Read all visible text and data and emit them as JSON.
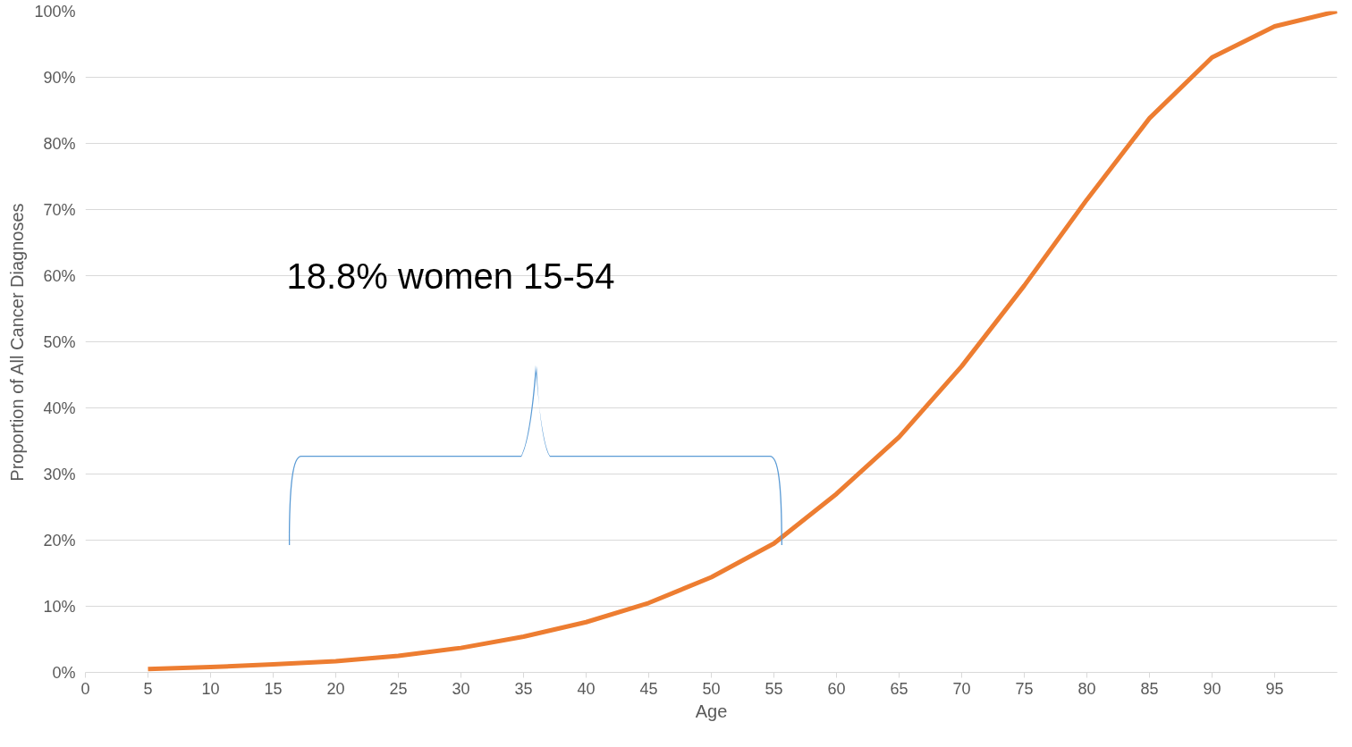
{
  "chart_data": {
    "type": "line",
    "xlabel": "Age",
    "ylabel": "Proportion of All Cancer Diagnoses",
    "x": [
      5,
      10,
      15,
      20,
      25,
      30,
      35,
      40,
      45,
      50,
      55,
      60,
      65,
      70,
      75,
      80,
      85,
      90,
      95,
      100
    ],
    "series": [
      {
        "color": "#ed7d31",
        "values": [
          0.5,
          0.8,
          1.2,
          1.7,
          2.5,
          3.7,
          5.4,
          7.6,
          10.5,
          14.4,
          19.5,
          27,
          35.6,
          46.3,
          58.5,
          71.5,
          83.8,
          93,
          97.7,
          100
        ]
      }
    ],
    "xlim": [
      0,
      100
    ],
    "xticks": [
      0,
      5,
      10,
      15,
      20,
      25,
      30,
      35,
      40,
      45,
      50,
      55,
      60,
      65,
      70,
      75,
      80,
      85,
      90,
      95
    ],
    "ylim": [
      0,
      100
    ],
    "yticks": [
      {
        "value": 0,
        "label": "0%"
      },
      {
        "value": 10,
        "label": "10%"
      },
      {
        "value": 20,
        "label": "20%"
      },
      {
        "value": 30,
        "label": "30%"
      },
      {
        "value": 40,
        "label": "40%"
      },
      {
        "value": 50,
        "label": "50%"
      },
      {
        "value": 60,
        "label": "60%"
      },
      {
        "value": 70,
        "label": "70%"
      },
      {
        "value": 80,
        "label": "80%"
      },
      {
        "value": 90,
        "label": "90%"
      },
      {
        "value": 100,
        "label": "100%"
      }
    ],
    "grid": "y",
    "marker": "none",
    "line_style": "solid",
    "annotations": [
      "18.8% women 15-54"
    ]
  }
}
